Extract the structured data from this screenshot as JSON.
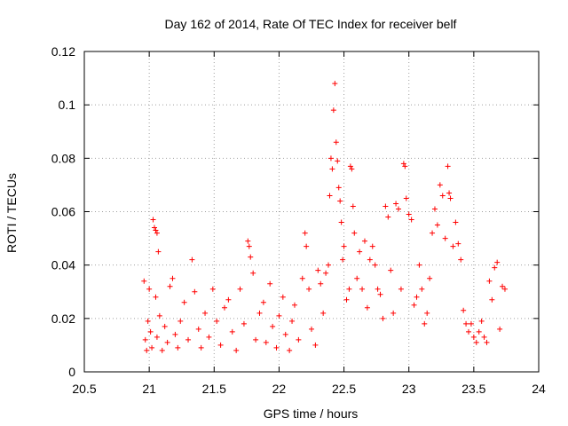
{
  "chart_data": {
    "type": "scatter",
    "title": "Day 162 of 2014, Rate Of TEC Index for receiver belf",
    "xlabel": "GPS time / hours",
    "ylabel": "ROTI / TECUs",
    "xlim": [
      20.5,
      24
    ],
    "ylim": [
      0,
      0.12
    ],
    "x_ticks": [
      20.5,
      21,
      21.5,
      22,
      22.5,
      23,
      23.5,
      24
    ],
    "x_tick_labels": [
      "20.5",
      "21",
      "21.5",
      "22",
      "22.5",
      "23",
      "23.5",
      "24"
    ],
    "y_ticks": [
      0,
      0.02,
      0.04,
      0.06,
      0.08,
      0.1,
      0.12
    ],
    "y_tick_labels": [
      "0",
      "0.02",
      "0.04",
      "0.06",
      "0.08",
      "0.1",
      "0.12"
    ],
    "grid": true,
    "marker": "+",
    "series": [
      {
        "name": "ROTI",
        "color": "#ff0000",
        "points": [
          [
            20.96,
            0.034
          ],
          [
            20.97,
            0.012
          ],
          [
            20.98,
            0.008
          ],
          [
            20.99,
            0.019
          ],
          [
            21.0,
            0.031
          ],
          [
            21.01,
            0.015
          ],
          [
            21.02,
            0.009
          ],
          [
            21.03,
            0.057
          ],
          [
            21.04,
            0.054
          ],
          [
            21.05,
            0.053
          ],
          [
            21.06,
            0.052
          ],
          [
            21.07,
            0.045
          ],
          [
            21.05,
            0.028
          ],
          [
            21.06,
            0.013
          ],
          [
            21.08,
            0.021
          ],
          [
            21.1,
            0.008
          ],
          [
            21.12,
            0.017
          ],
          [
            21.14,
            0.011
          ],
          [
            21.16,
            0.032
          ],
          [
            21.18,
            0.035
          ],
          [
            21.2,
            0.014
          ],
          [
            21.22,
            0.009
          ],
          [
            21.24,
            0.019
          ],
          [
            21.27,
            0.026
          ],
          [
            21.3,
            0.012
          ],
          [
            21.33,
            0.042
          ],
          [
            21.35,
            0.03
          ],
          [
            21.38,
            0.016
          ],
          [
            21.4,
            0.009
          ],
          [
            21.43,
            0.022
          ],
          [
            21.46,
            0.013
          ],
          [
            21.49,
            0.031
          ],
          [
            21.52,
            0.019
          ],
          [
            21.55,
            0.01
          ],
          [
            21.58,
            0.024
          ],
          [
            21.61,
            0.027
          ],
          [
            21.64,
            0.015
          ],
          [
            21.67,
            0.008
          ],
          [
            21.7,
            0.031
          ],
          [
            21.73,
            0.018
          ],
          [
            21.76,
            0.049
          ],
          [
            21.77,
            0.047
          ],
          [
            21.78,
            0.043
          ],
          [
            21.8,
            0.037
          ],
          [
            21.82,
            0.012
          ],
          [
            21.85,
            0.022
          ],
          [
            21.88,
            0.026
          ],
          [
            21.9,
            0.011
          ],
          [
            21.93,
            0.033
          ],
          [
            21.95,
            0.017
          ],
          [
            21.98,
            0.009
          ],
          [
            22.0,
            0.021
          ],
          [
            22.03,
            0.028
          ],
          [
            22.05,
            0.014
          ],
          [
            22.08,
            0.008
          ],
          [
            22.1,
            0.019
          ],
          [
            22.12,
            0.025
          ],
          [
            22.15,
            0.012
          ],
          [
            22.18,
            0.035
          ],
          [
            22.2,
            0.052
          ],
          [
            22.21,
            0.047
          ],
          [
            22.23,
            0.031
          ],
          [
            22.25,
            0.016
          ],
          [
            22.28,
            0.01
          ],
          [
            22.3,
            0.038
          ],
          [
            22.32,
            0.033
          ],
          [
            22.34,
            0.022
          ],
          [
            22.36,
            0.037
          ],
          [
            22.38,
            0.04
          ],
          [
            22.39,
            0.066
          ],
          [
            22.4,
            0.08
          ],
          [
            22.41,
            0.076
          ],
          [
            22.42,
            0.098
          ],
          [
            22.43,
            0.108
          ],
          [
            22.44,
            0.086
          ],
          [
            22.45,
            0.079
          ],
          [
            22.46,
            0.069
          ],
          [
            22.47,
            0.064
          ],
          [
            22.48,
            0.056
          ],
          [
            22.49,
            0.042
          ],
          [
            22.5,
            0.047
          ],
          [
            22.52,
            0.027
          ],
          [
            22.54,
            0.031
          ],
          [
            22.55,
            0.077
          ],
          [
            22.56,
            0.076
          ],
          [
            22.57,
            0.062
          ],
          [
            22.58,
            0.052
          ],
          [
            22.6,
            0.035
          ],
          [
            22.62,
            0.045
          ],
          [
            22.64,
            0.031
          ],
          [
            22.66,
            0.049
          ],
          [
            22.68,
            0.024
          ],
          [
            22.7,
            0.042
          ],
          [
            22.72,
            0.047
          ],
          [
            22.74,
            0.04
          ],
          [
            22.76,
            0.031
          ],
          [
            22.78,
            0.029
          ],
          [
            22.8,
            0.02
          ],
          [
            22.82,
            0.062
          ],
          [
            22.84,
            0.058
          ],
          [
            22.86,
            0.038
          ],
          [
            22.88,
            0.022
          ],
          [
            22.9,
            0.063
          ],
          [
            22.92,
            0.061
          ],
          [
            22.94,
            0.031
          ],
          [
            22.96,
            0.078
          ],
          [
            22.97,
            0.077
          ],
          [
            22.98,
            0.065
          ],
          [
            23.0,
            0.059
          ],
          [
            23.02,
            0.057
          ],
          [
            23.04,
            0.025
          ],
          [
            23.06,
            0.028
          ],
          [
            23.08,
            0.04
          ],
          [
            23.1,
            0.031
          ],
          [
            23.12,
            0.018
          ],
          [
            23.14,
            0.022
          ],
          [
            23.16,
            0.035
          ],
          [
            23.18,
            0.052
          ],
          [
            23.2,
            0.061
          ],
          [
            23.22,
            0.055
          ],
          [
            23.24,
            0.07
          ],
          [
            23.26,
            0.066
          ],
          [
            23.28,
            0.05
          ],
          [
            23.3,
            0.077
          ],
          [
            23.31,
            0.067
          ],
          [
            23.32,
            0.065
          ],
          [
            23.34,
            0.047
          ],
          [
            23.36,
            0.056
          ],
          [
            23.38,
            0.048
          ],
          [
            23.4,
            0.042
          ],
          [
            23.42,
            0.023
          ],
          [
            23.44,
            0.018
          ],
          [
            23.46,
            0.015
          ],
          [
            23.48,
            0.018
          ],
          [
            23.5,
            0.013
          ],
          [
            23.52,
            0.011
          ],
          [
            23.54,
            0.015
          ],
          [
            23.56,
            0.019
          ],
          [
            23.58,
            0.013
          ],
          [
            23.6,
            0.011
          ],
          [
            23.62,
            0.034
          ],
          [
            23.64,
            0.027
          ],
          [
            23.66,
            0.039
          ],
          [
            23.68,
            0.041
          ],
          [
            23.7,
            0.016
          ],
          [
            23.72,
            0.032
          ],
          [
            23.74,
            0.031
          ]
        ]
      }
    ]
  }
}
